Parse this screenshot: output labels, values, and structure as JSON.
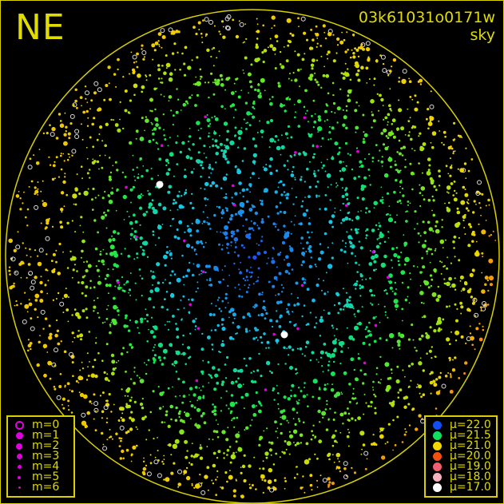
{
  "header": {
    "direction": "NE",
    "frame_id": "03k61031o0171w",
    "image_type": "sky"
  },
  "colors": {
    "frame": "#d8d000",
    "background": "#000000",
    "magnitude_marker": "#e000e0"
  },
  "magnitude_legend": [
    {
      "label": "m=0",
      "symbol": "ring"
    },
    {
      "label": "m=1",
      "symbol": "dot"
    },
    {
      "label": "m=2",
      "symbol": "dot"
    },
    {
      "label": "m=3",
      "symbol": "dot"
    },
    {
      "label": "m=4",
      "symbol": "dot"
    },
    {
      "label": "m=5",
      "symbol": "dot"
    },
    {
      "label": "m=6",
      "symbol": "dot"
    }
  ],
  "brightness_legend": [
    {
      "label": "μ=22.0",
      "color": "#1050f0"
    },
    {
      "label": "μ=21.5",
      "color": "#10e060"
    },
    {
      "label": "μ=21.0",
      "color": "#f0d800"
    },
    {
      "label": "μ=20.0",
      "color": "#f05010"
    },
    {
      "label": "μ=19.0",
      "color": "#f06070"
    },
    {
      "label": "μ=18.0",
      "color": "#f8b0c0"
    },
    {
      "label": "μ=17.0",
      "color": "#ffffff"
    }
  ]
}
